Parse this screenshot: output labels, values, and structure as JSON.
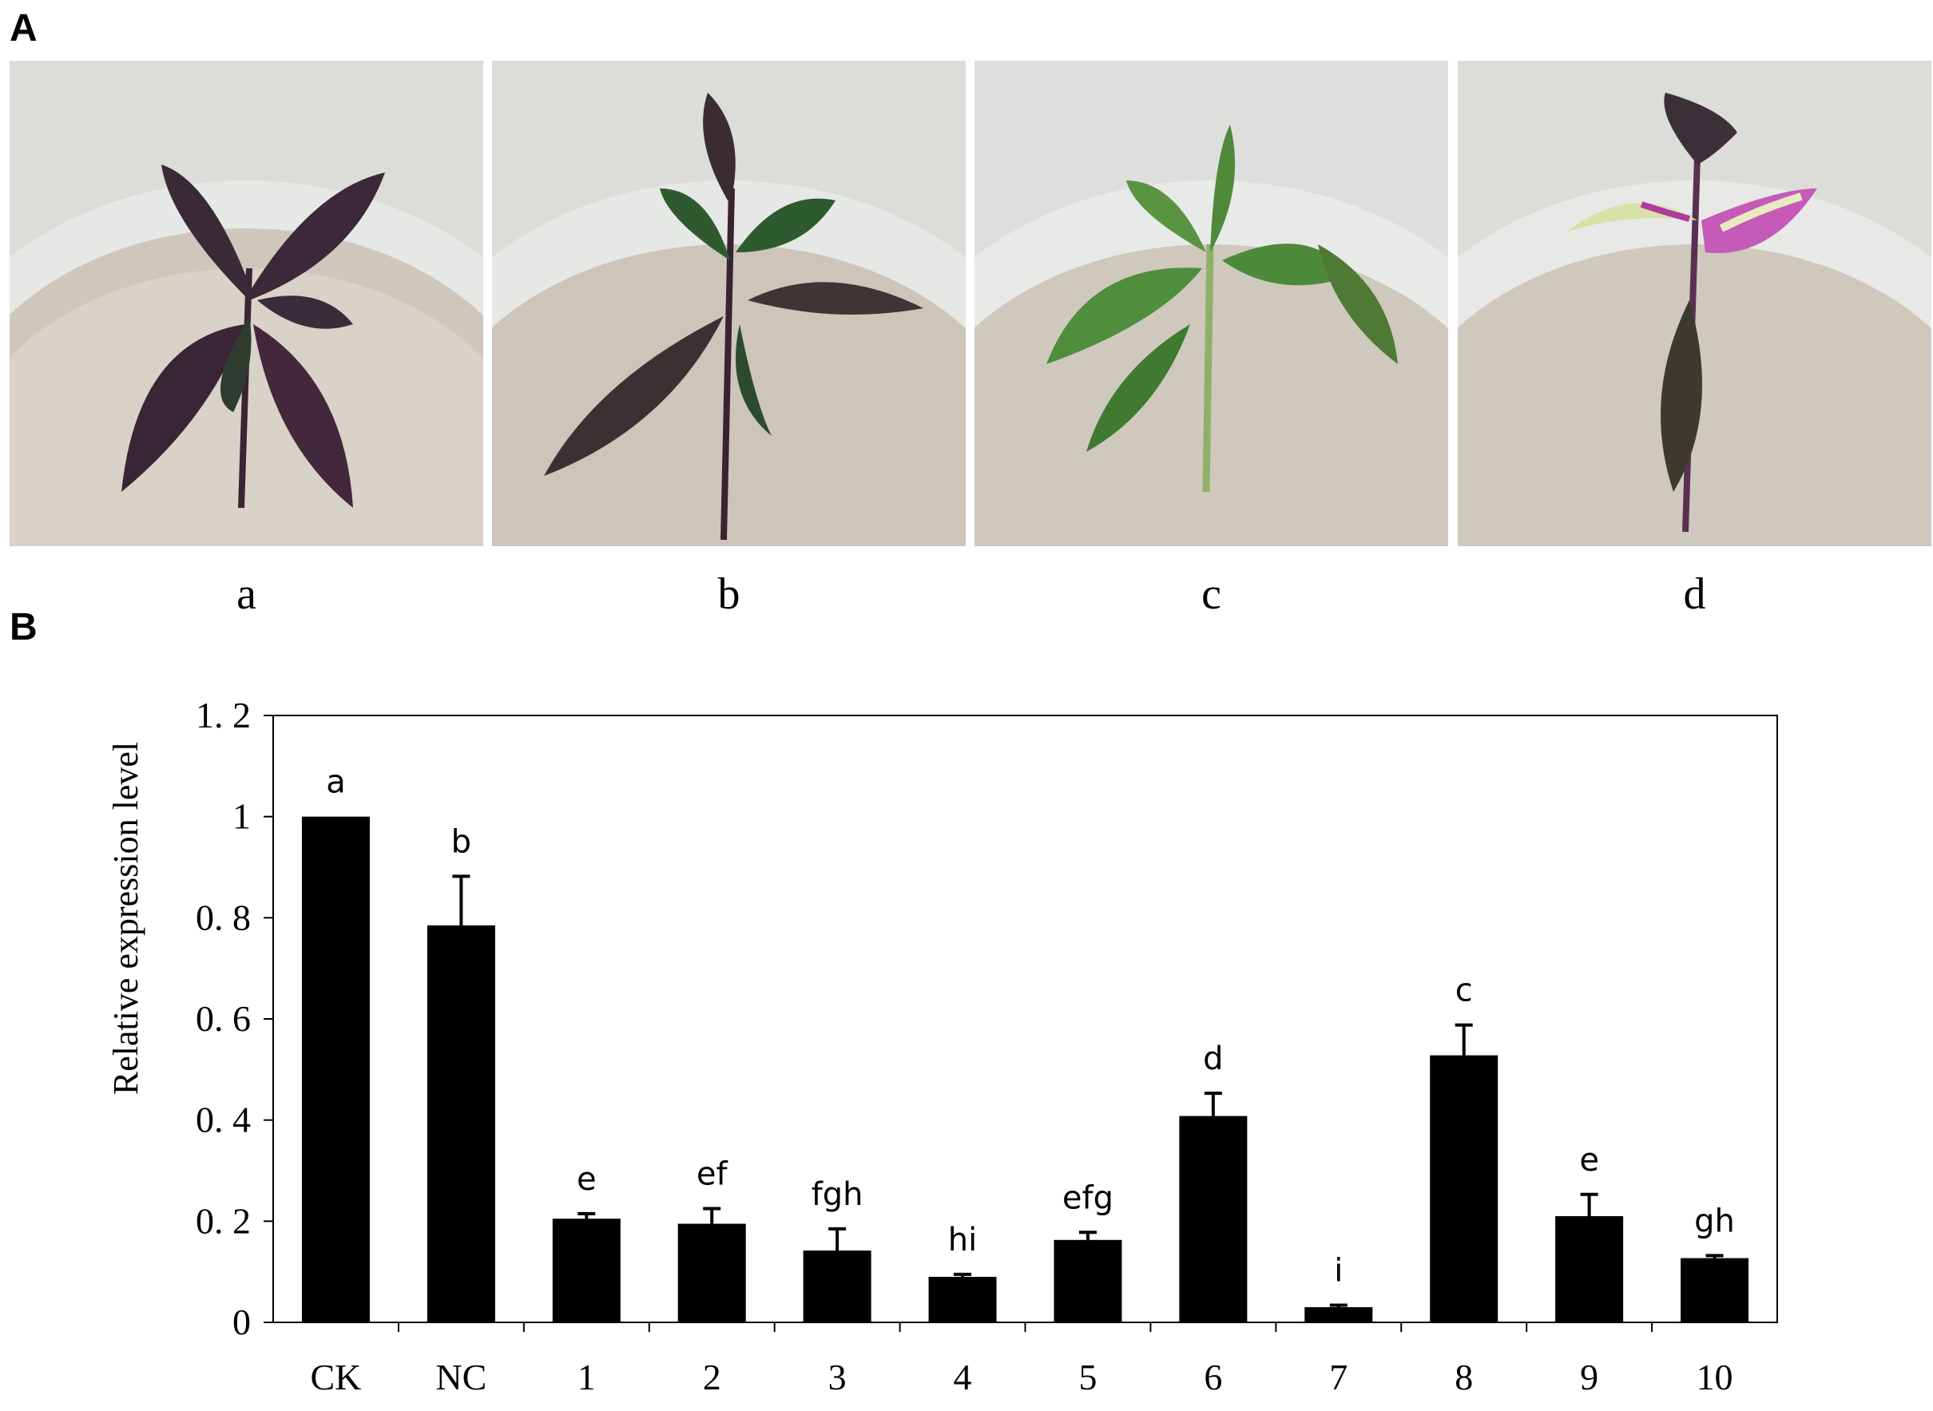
{
  "panel_a": {
    "letter": "A",
    "photos": [
      {
        "label": "a",
        "plant": "purple-leaved pepper seedling"
      },
      {
        "label": "b",
        "plant": "dark green-purple pepper seedling"
      },
      {
        "label": "c",
        "plant": "green pepper seedling"
      },
      {
        "label": "d",
        "plant": "variegated purple-white pepper seedling"
      }
    ]
  },
  "panel_b": {
    "letter": "B"
  },
  "chart_data": {
    "type": "bar",
    "ylabel": "Relative expression level",
    "xlabel": "",
    "ylim": [
      0,
      1.2
    ],
    "yticks": [
      "0",
      "0. 2",
      "0. 4",
      "0. 6",
      "0. 8",
      "1",
      "1. 2"
    ],
    "ytick_values": [
      0,
      0.2,
      0.4,
      0.6,
      0.8,
      1,
      1.2
    ],
    "categories": [
      "CK",
      "NC",
      "1",
      "2",
      "3",
      "4",
      "5",
      "6",
      "7",
      "8",
      "9",
      "10"
    ],
    "values": [
      1.0,
      0.785,
      0.205,
      0.195,
      0.142,
      0.09,
      0.163,
      0.408,
      0.03,
      0.528,
      0.21,
      0.127
    ],
    "errors": [
      0,
      0.097,
      0.01,
      0.03,
      0.043,
      0.005,
      0.015,
      0.045,
      0.004,
      0.06,
      0.043,
      0.005
    ],
    "significance": [
      "a",
      "b",
      "e",
      "ef",
      "fgh",
      "hi",
      "efg",
      "d",
      "i",
      "c",
      "e",
      "gh"
    ],
    "bar_color": "#000000",
    "grid": false
  }
}
